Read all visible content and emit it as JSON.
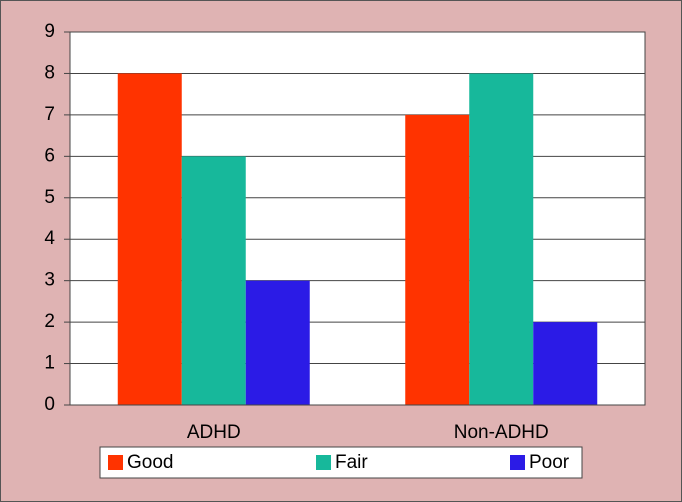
{
  "chart_data": {
    "type": "bar",
    "categories": [
      "ADHD",
      "Non-ADHD"
    ],
    "series": [
      {
        "name": "Good",
        "color": "#ff3300",
        "values": [
          8,
          7
        ]
      },
      {
        "name": "Fair",
        "color": "#17b89b",
        "values": [
          6,
          8
        ]
      },
      {
        "name": "Poor",
        "color": "#2b1be6",
        "values": [
          3,
          2
        ]
      }
    ],
    "ylim": [
      0,
      9
    ],
    "yticks": [
      0,
      1,
      2,
      3,
      4,
      5,
      6,
      7,
      8,
      9
    ],
    "grid": true,
    "legend": "bottom"
  }
}
